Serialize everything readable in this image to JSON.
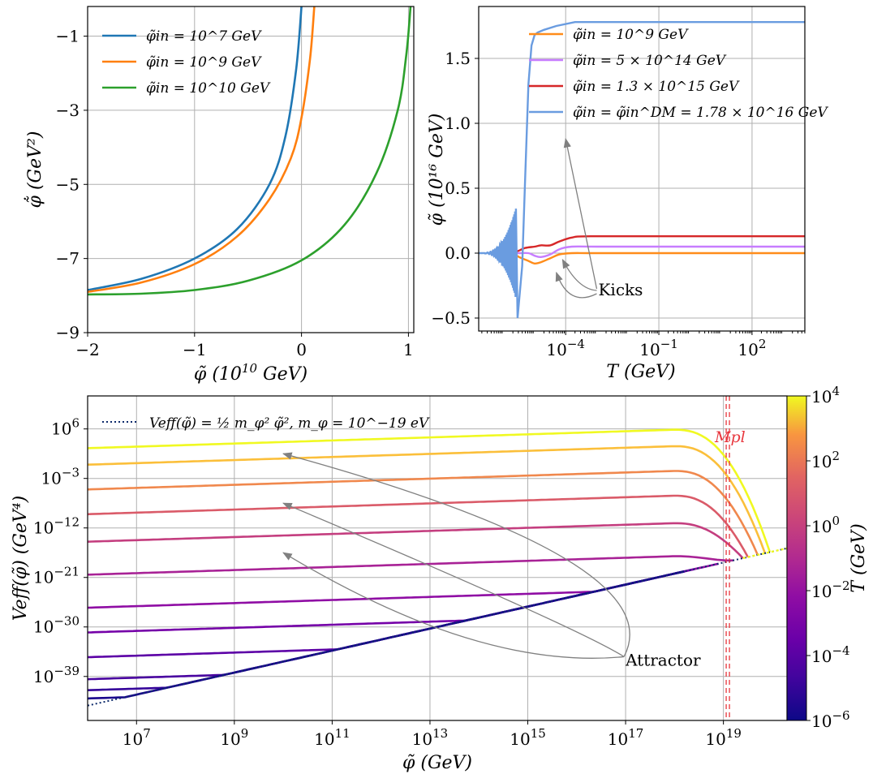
{
  "chart_data": [
    {
      "id": "panel-a",
      "type": "line",
      "xlabel": "φ̃ (10^10 GeV)",
      "ylabel": "φ̃̇ (GeV²)",
      "xlim": [
        -2,
        1.05
      ],
      "ylim": [
        -9,
        -0.2
      ],
      "xticks": [
        -2,
        -1,
        0,
        1
      ],
      "xtick_labels": [
        "−2",
        "−1",
        "0",
        "1"
      ],
      "yticks": [
        -9,
        -7,
        -5,
        -3,
        -1
      ],
      "ytick_labels": [
        "−9",
        "−7",
        "−5",
        "−3",
        "−1"
      ],
      "grid": true,
      "legend": "top-left",
      "series": [
        {
          "name": "φ̃in = 10^7 GeV",
          "color": "#1f77b4",
          "x": [
            -2,
            -1.5,
            -1,
            -0.6,
            -0.3,
            -0.15,
            -0.05,
            0
          ],
          "y": [
            -7.85,
            -7.55,
            -7.0,
            -6.2,
            -5.0,
            -3.7,
            -1.9,
            -0.2
          ]
        },
        {
          "name": "φ̃in = 10^9 GeV",
          "color": "#ff7f0e",
          "x": [
            -2,
            -1.5,
            -1,
            -0.6,
            -0.3,
            -0.1,
            0,
            0.08,
            0.12
          ],
          "y": [
            -7.9,
            -7.65,
            -7.15,
            -6.4,
            -5.4,
            -4.3,
            -3.2,
            -1.6,
            -0.2
          ]
        },
        {
          "name": "φ̃in = 10^10 GeV",
          "color": "#2ca02c",
          "x": [
            -2,
            -1.5,
            -1,
            -0.5,
            0,
            0.4,
            0.7,
            0.9,
            0.98,
            1.02
          ],
          "y": [
            -7.97,
            -7.95,
            -7.85,
            -7.6,
            -7.05,
            -6.1,
            -4.7,
            -3.0,
            -1.5,
            -0.2
          ]
        }
      ]
    },
    {
      "id": "panel-b",
      "type": "line",
      "xlabel": "T (GeV)",
      "ylabel": "φ̃ (10^16 GeV)",
      "xscale": "log",
      "xlim_log10": [
        -6.8,
        3.7
      ],
      "ylim": [
        -0.6,
        1.9
      ],
      "xticks_log10": [
        -4,
        -1,
        2
      ],
      "xtick_labels": [
        "10^−4",
        "10^−1",
        "10^2"
      ],
      "yticks": [
        -0.5,
        0.0,
        0.5,
        1.0,
        1.5
      ],
      "ytick_labels": [
        "−0.5",
        "0.0",
        "0.5",
        "1.0",
        "1.5"
      ],
      "grid": true,
      "legend": "top-right",
      "annotations": [
        {
          "text": "Kicks",
          "at_log10T": -3.0,
          "at_y": -0.3
        }
      ],
      "series": [
        {
          "name": "φ̃in = 10^9 GeV",
          "color": "#ff8c1a",
          "log10T": [
            -5.7,
            -5.5,
            -5.2,
            -5.0,
            -4.8,
            -4.5,
            -4.2,
            -3.8,
            -3.0,
            0,
            3.7
          ],
          "y": [
            0,
            -0.03,
            -0.06,
            -0.08,
            -0.07,
            -0.04,
            -0.01,
            0,
            0,
            0,
            0
          ]
        },
        {
          "name": "φ̃in = 5 × 10^14 GeV",
          "color": "#c77dff",
          "log10T": [
            -5.7,
            -5.5,
            -5.2,
            -5.0,
            -4.8,
            -4.5,
            -4.2,
            -3.8,
            -3.0,
            0,
            3.7
          ],
          "y": [
            0.0,
            0.0,
            0.0,
            -0.02,
            -0.03,
            -0.01,
            0.03,
            0.05,
            0.05,
            0.05,
            0.05
          ]
        },
        {
          "name": "φ̃in = 1.3 × 10^15 GeV",
          "color": "#d62728",
          "log10T": [
            -5.7,
            -5.5,
            -5.3,
            -5.0,
            -4.8,
            -4.5,
            -4.2,
            -3.8,
            -3.2,
            0,
            3.7
          ],
          "y": [
            0.0,
            0.02,
            0.04,
            0.05,
            0.06,
            0.06,
            0.09,
            0.12,
            0.13,
            0.13,
            0.13
          ]
        },
        {
          "name": "φ̃in = φ̃in^DM = 1.78 × 10^16 GeV",
          "color": "#6a9ce0",
          "log10T": [
            -5.55,
            -5.4,
            -5.3,
            -5.2,
            -5.1,
            -5.0,
            -4.9,
            -4.7,
            -4.3,
            -3.7,
            -3.0,
            0,
            3.7
          ],
          "y": [
            -0.5,
            -0.1,
            0.6,
            1.3,
            1.6,
            1.68,
            1.7,
            1.72,
            1.75,
            1.78,
            1.78,
            1.78,
            1.78
          ],
          "oscillation": {
            "log10T_range": [
              -6.8,
              -5.6
            ],
            "max_amp": 0.35
          }
        }
      ]
    },
    {
      "id": "panel-c",
      "type": "line",
      "xlabel": "φ̃ (GeV)",
      "ylabel": "Veff(φ̃) (GeV⁴)",
      "xscale": "log",
      "yscale": "log",
      "xlim_log10": [
        6,
        20.3
      ],
      "ylim_log10": [
        -47,
        12
      ],
      "xticks_log10": [
        7,
        9,
        11,
        13,
        15,
        17,
        19
      ],
      "xtick_labels": [
        "10^7",
        "10^9",
        "10^11",
        "10^13",
        "10^15",
        "10^17",
        "10^19"
      ],
      "yticks_log10": [
        -39,
        -30,
        -21,
        -12,
        -3,
        6
      ],
      "ytick_labels": [
        "10^−39",
        "10^−30",
        "10^−21",
        "10^−12",
        "10^−3",
        "10^6"
      ],
      "grid": true,
      "legend": "top-left",
      "legend_entry": "Veff(φ̃) = ½ m_φ² φ̃², m_φ = 10^−19 eV",
      "vline": {
        "label": "Mpl",
        "log10x": 19.09,
        "color": "#e8363d"
      },
      "annotations": [
        {
          "text": "Attractor",
          "at_log10x": 17,
          "at_log10y": -36
        }
      ],
      "colorbar": {
        "label": "T (GeV)",
        "scale": "log",
        "range_log10": [
          -6,
          4
        ],
        "ticks_log10": [
          -6,
          -4,
          -2,
          0,
          2,
          4
        ],
        "tick_labels": [
          "10^−6",
          "10^−4",
          "10^−2",
          "10^0",
          "10^2",
          "10^4"
        ],
        "colormap": "plasma"
      },
      "attractor": {
        "log10x": [
          6,
          20.3
        ],
        "log10y": [
          -44.3,
          -15.7
        ]
      },
      "curves": [
        {
          "log10T": 4.0,
          "log10y_at_1e6": 2.5,
          "peak_log10x": 18.0,
          "drop_log10x": 19.75,
          "color": "#f0f921"
        },
        {
          "log10T": 3.0,
          "log10y_at_1e6": -0.5,
          "peak_log10x": 18.0,
          "drop_log10x": 19.65,
          "color": "#fbbf3a"
        },
        {
          "log10T": 2.0,
          "log10y_at_1e6": -5.0,
          "peak_log10x": 18.0,
          "drop_log10x": 19.5,
          "color": "#f0884d"
        },
        {
          "log10T": 1.0,
          "log10y_at_1e6": -9.5,
          "peak_log10x": 18.0,
          "drop_log10x": 19.3,
          "color": "#da5b69"
        },
        {
          "log10T": 0.0,
          "log10y_at_1e6": -14.5,
          "peak_log10x": 18.0,
          "drop_log10x": 19.2,
          "color": "#c43e7f"
        },
        {
          "log10T": -1.0,
          "log10y_at_1e6": -20.5,
          "peak_log10x": 18.0,
          "drop_log10x": 19.0,
          "color": "#a82296"
        },
        {
          "log10T": -2.0,
          "log10y_at_1e6": -26.5,
          "peak_log10x": 18.0,
          "drop_log10x": 18.7,
          "color": "#8f0da4"
        },
        {
          "log10T": -3.0,
          "log10y_at_1e6": -31.0,
          "peak_log10x": 18.0,
          "drop_log10x": 18.2,
          "color": "#7501a8"
        },
        {
          "log10T": -4.0,
          "log10y_at_1e6": -35.5,
          "peak_log10x": 18.0,
          "drop_log10x": 18.0,
          "color": "#5c01a6"
        },
        {
          "log10T": -4.5,
          "log10y_at_1e6": -39.5,
          "peak_log10x": 18.0,
          "drop_log10x": 18.0,
          "color": "#4903a0"
        },
        {
          "log10T": -5.0,
          "log10y_at_1e6": -41.5,
          "peak_log10x": 18.0,
          "drop_log10x": 18.0,
          "color": "#35049a"
        },
        {
          "log10T": -6.0,
          "log10y_at_1e6": -43.0,
          "peak_log10x": 18.0,
          "drop_log10x": 18.0,
          "color": "#1a068d"
        }
      ]
    }
  ],
  "labels": {
    "a_xlabel_sym": "φ̃",
    "a_xlabel_unit": "(10",
    "a_xlabel_exp": "10",
    "a_xlabel_end": "GeV)",
    "a_ylabel": "φ̃̇ (GeV²)",
    "b_xlabel": "T (GeV)",
    "b_ylabel": "φ̃ (10¹⁶ GeV)",
    "c_xlabel": "φ̃ (GeV)",
    "c_ylabel": "Veff(φ̃) (GeV⁴)",
    "c_cbar_label": "T (GeV)",
    "kicks": "Kicks",
    "attractor": "Attractor",
    "mpl": "Mpl"
  }
}
